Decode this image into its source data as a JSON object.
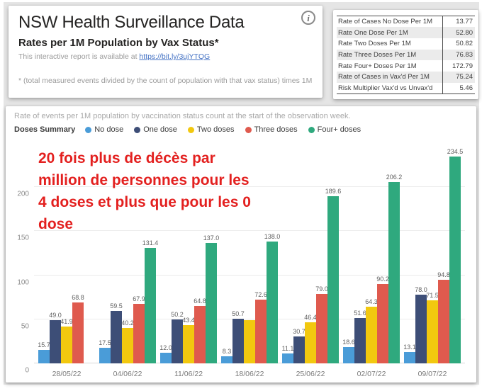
{
  "header_card": {
    "title": "NSW Health Surveillance Data",
    "subtitle": "Rates per 1M Population by Vax Status*",
    "link_prefix": "This interactive report is available at ",
    "link_text": "https://bit.ly/3ujYTQG",
    "footnote": "* (total measured events divided by the count of population with that vax status) times 1M",
    "info_icon_glyph": "i"
  },
  "stats_table": {
    "rows": [
      {
        "label": "Rate of Cases No Dose Per 1M",
        "value": "13.77"
      },
      {
        "label": "Rate One Dose Per 1M",
        "value": "52.80"
      },
      {
        "label": "Rate Two Doses Per 1M",
        "value": "50.82"
      },
      {
        "label": "Rate Three Doses Per 1M",
        "value": "76.83"
      },
      {
        "label": "Rate Four+ Doses Per 1M",
        "value": "172.79"
      },
      {
        "label": "Rate of Cases in Vax'd Per 1M",
        "value": "75.24"
      },
      {
        "label": "Risk Multiplier Vax'd vs Unvax'd",
        "value": "5.46"
      }
    ]
  },
  "chart_card": {
    "description": "Rate of events per 1M population by vaccination status count at the start of the observation week.",
    "legend_title": "Doses Summary",
    "annotation": {
      "color": "#e3201f",
      "lines": [
        "20 fois plus  de décès par",
        "million de personnes pour les",
        "4 doses et plus que pour les 0",
        "dose"
      ]
    }
  },
  "chart_data": {
    "type": "bar",
    "title": "Rates per 1M Population by Vax Status",
    "xlabel": "",
    "ylabel": "",
    "categories": [
      "28/05/22",
      "04/06/22",
      "11/06/22",
      "18/06/22",
      "25/06/22",
      "02/07/22",
      "09/07/22"
    ],
    "series": [
      {
        "name": "No dose",
        "color": "#4a9cd8",
        "values": [
          15.7,
          17.5,
          12.0,
          8.3,
          11.1,
          18.6,
          13.1
        ],
        "labels": [
          "15.7",
          "17.5",
          "12.0",
          "8.3",
          "11.1",
          "18.6",
          "13.1"
        ]
      },
      {
        "name": "One dose",
        "color": "#3d4e77",
        "values": [
          49.0,
          59.5,
          50.2,
          50.7,
          30.7,
          51.6,
          78.0
        ],
        "labels": [
          "49.0",
          "59.5",
          "50.2",
          "50.7",
          "30.7",
          "51.6",
          "78.0"
        ]
      },
      {
        "name": "Two doses",
        "color": "#f2c80f",
        "values": [
          41.9,
          40.2,
          43.4,
          49.0,
          46.4,
          64.3,
          71.5
        ],
        "labels": [
          "41.9",
          "40.2",
          "43.4",
          null,
          "46.4",
          "64.3",
          "71.5"
        ]
      },
      {
        "name": "Three doses",
        "color": "#df5a4e",
        "values": [
          68.8,
          67.9,
          64.8,
          72.6,
          79.0,
          90.2,
          94.8
        ],
        "labels": [
          "68.8",
          "67.9",
          "64.8",
          "72.6",
          "79.0",
          "90.2",
          "94.8"
        ]
      },
      {
        "name": "Four+ doses",
        "color": "#2fa97e",
        "values": [
          null,
          131.4,
          137.0,
          138.0,
          189.6,
          206.2,
          234.5
        ],
        "labels": [
          null,
          "131.4",
          "137.0",
          "138.0",
          "189.6",
          "206.2",
          "234.5"
        ]
      }
    ],
    "y_ticks": [
      0,
      50,
      100,
      150,
      200
    ],
    "y_max": 250,
    "grid": true,
    "legend_position": "top"
  }
}
